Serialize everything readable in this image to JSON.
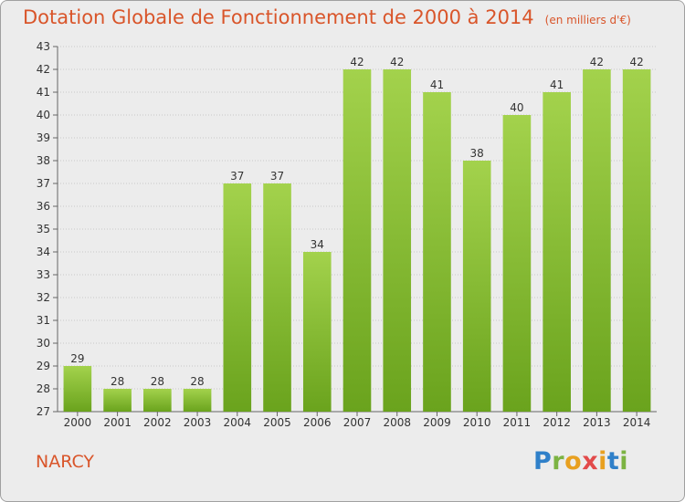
{
  "header": {
    "title": "Dotation Globale de Fonctionnement de 2000 à 2014",
    "unit": "(en milliers d'€)"
  },
  "footer": {
    "town": "NARCY",
    "logo_text": "Proxiti"
  },
  "colors": {
    "bar_light": "#a3d24c",
    "bar_dark": "#6aa31d",
    "title": "#d9552a",
    "grid": "#c8c8c8"
  },
  "chart_data": {
    "type": "bar",
    "title": "Dotation Globale de Fonctionnement de 2000 à 2014",
    "subtitle": "(en milliers d'€)",
    "categories": [
      "2000",
      "2001",
      "2002",
      "2003",
      "2004",
      "2005",
      "2006",
      "2007",
      "2008",
      "2009",
      "2010",
      "2011",
      "2012",
      "2013",
      "2014"
    ],
    "values": [
      29,
      28,
      28,
      28,
      37,
      37,
      34,
      42,
      42,
      41,
      38,
      40,
      41,
      42,
      42
    ],
    "ylim": [
      27,
      43
    ],
    "yticks": [
      27,
      28,
      29,
      30,
      31,
      32,
      33,
      34,
      35,
      36,
      37,
      38,
      39,
      40,
      41,
      42,
      43
    ],
    "grid": true,
    "data_labels": true,
    "legend": false
  }
}
